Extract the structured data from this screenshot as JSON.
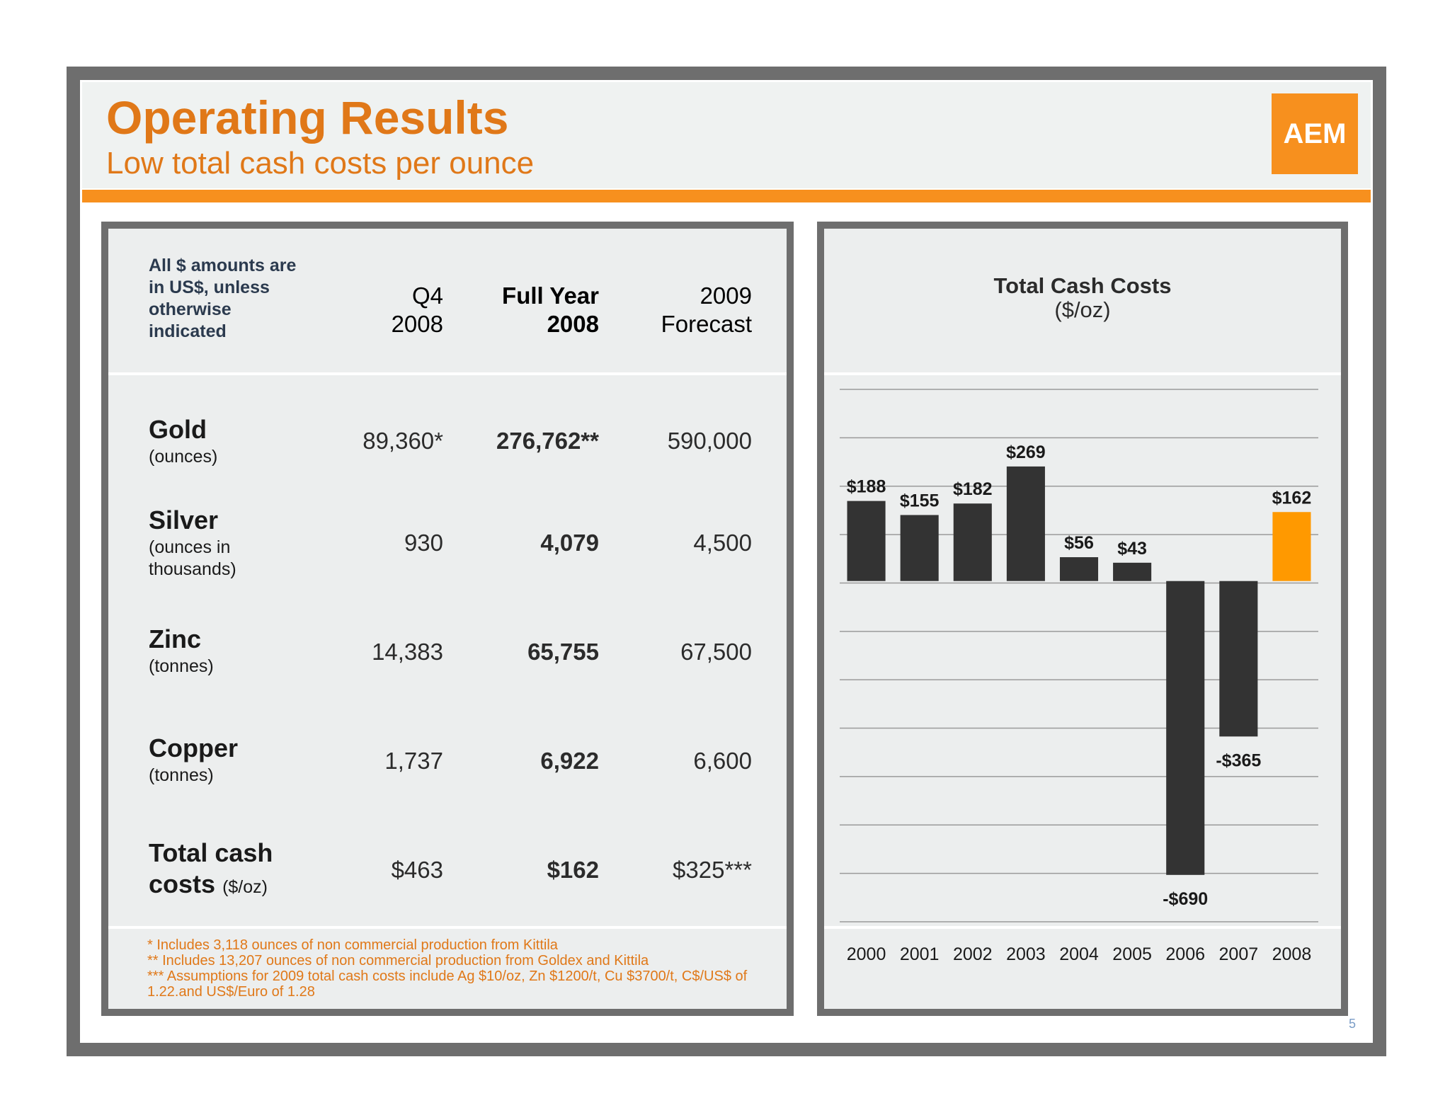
{
  "header": {
    "title": "Operating Results",
    "subtitle": "Low total cash costs per ounce",
    "logo_text": "AEM"
  },
  "table": {
    "note": "All $ amounts are in US$, unless otherwise indicated",
    "columns": [
      {
        "line1": "Q4",
        "line2": "2008"
      },
      {
        "line1": "Full Year",
        "line2": "2008"
      },
      {
        "line1": "2009",
        "line2": "Forecast"
      }
    ],
    "rows": [
      {
        "name": "Gold",
        "unit": "(ounces)",
        "values": [
          "89,360*",
          "276,762**",
          "590,000"
        ]
      },
      {
        "name": "Silver",
        "unit": "(ounces in thousands)",
        "values": [
          "930",
          "4,079",
          "4,500"
        ]
      },
      {
        "name": "Zinc",
        "unit": "(tonnes)",
        "values": [
          "14,383",
          "65,755",
          "67,500"
        ]
      },
      {
        "name": "Copper",
        "unit": "(tonnes)",
        "values": [
          "1,737",
          "6,922",
          "6,600"
        ]
      },
      {
        "name": "Total cash costs",
        "unit": "($/oz)",
        "name_line1": "Total cash",
        "name_line2": "costs",
        "values": [
          "$463",
          "$162",
          "$325***"
        ]
      }
    ],
    "footnotes": [
      "* Includes 3,118 ounces of non commercial production from Kittila",
      "** Includes 13,207 ounces of non commercial production from Goldex and Kittila",
      "*** Assumptions for 2009 total cash costs include Ag $10/oz, Zn $1200/t, Cu $3700/t, C$/US$ of",
      "1.22.and US$/Euro of 1.28"
    ]
  },
  "chart_data": {
    "type": "bar",
    "title": "Total Cash Costs",
    "subtitle": "($/oz)",
    "categories": [
      "2000",
      "2001",
      "2002",
      "2003",
      "2004",
      "2005",
      "2006",
      "2007",
      "2008"
    ],
    "values": [
      188,
      155,
      182,
      269,
      56,
      43,
      -690,
      -365,
      162
    ],
    "labels": [
      "$188",
      "$155",
      "$182",
      "$269",
      "$56",
      "$43",
      "-$690",
      "-$365",
      "$162"
    ],
    "bar_color": "#333333",
    "highlight_color": "#ff9900",
    "highlight_index": 8,
    "ylim": [
      -800,
      450
    ],
    "grid": true
  },
  "page_number": "5"
}
